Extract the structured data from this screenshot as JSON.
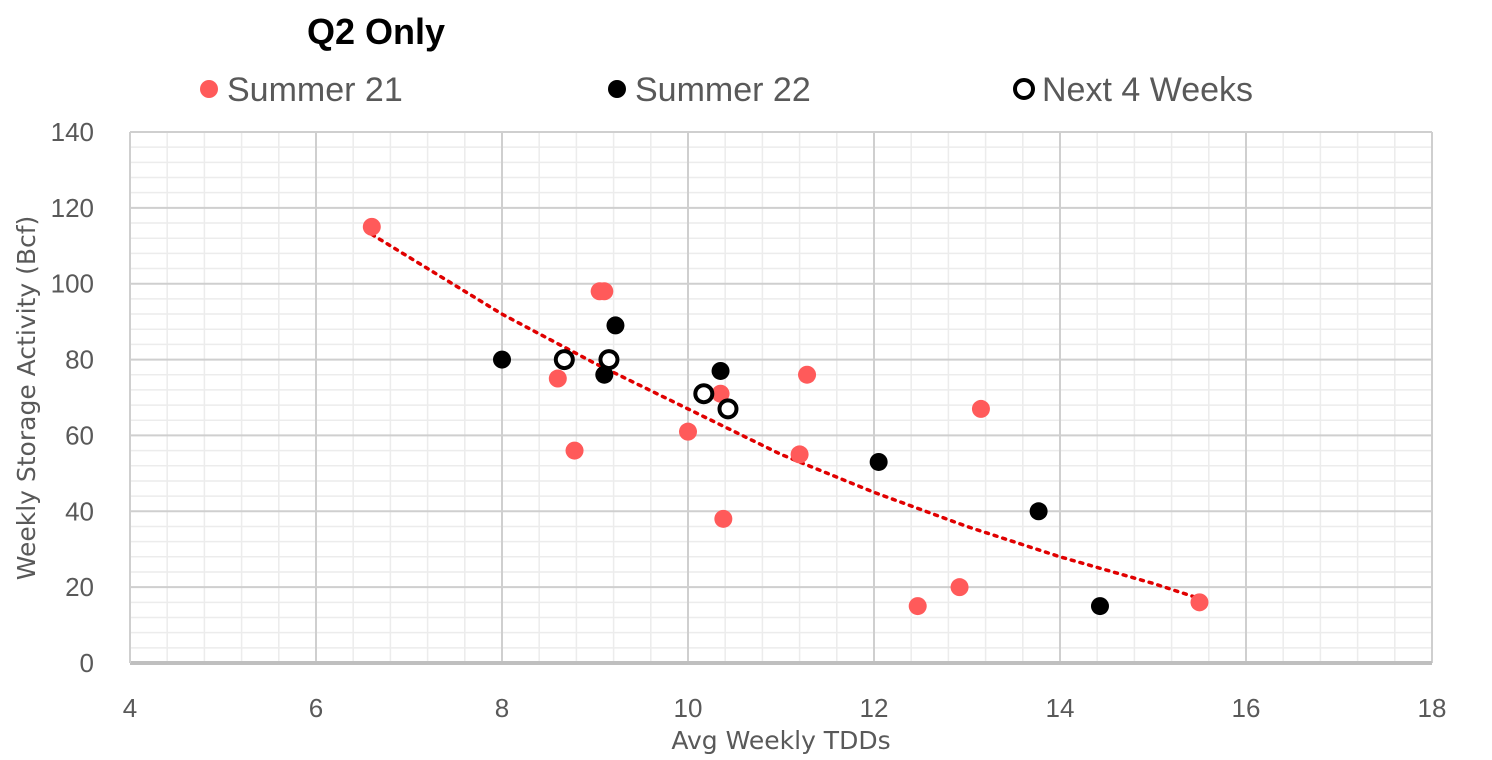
{
  "chart_data": {
    "type": "scatter",
    "title": "Q2 Only",
    "xlabel": "Avg Weekly TDDs",
    "ylabel": "Weekly Storage Activity (Bcf)",
    "xlim": [
      4,
      18
    ],
    "ylim": [
      0,
      140
    ],
    "x_ticks": [
      "4",
      "6",
      "8",
      "10",
      "12",
      "14",
      "16",
      "18"
    ],
    "y_ticks": [
      "0",
      "20",
      "40",
      "60",
      "80",
      "100",
      "120",
      "140"
    ],
    "grid": true,
    "legend_position": "top",
    "series": [
      {
        "name": "Summer 21",
        "marker": "filled-circle",
        "color": "#ff5a5a",
        "points": [
          {
            "x": 6.6,
            "y": 115
          },
          {
            "x": 9.05,
            "y": 98
          },
          {
            "x": 9.1,
            "y": 98
          },
          {
            "x": 8.6,
            "y": 75
          },
          {
            "x": 8.78,
            "y": 56
          },
          {
            "x": 10.0,
            "y": 61
          },
          {
            "x": 10.35,
            "y": 71
          },
          {
            "x": 10.38,
            "y": 38
          },
          {
            "x": 11.28,
            "y": 76
          },
          {
            "x": 11.2,
            "y": 55
          },
          {
            "x": 13.15,
            "y": 67
          },
          {
            "x": 12.92,
            "y": 20
          },
          {
            "x": 12.47,
            "y": 15
          },
          {
            "x": 15.5,
            "y": 16
          }
        ]
      },
      {
        "name": "Summer 22",
        "marker": "filled-circle",
        "color": "#000000",
        "points": [
          {
            "x": 8.0,
            "y": 80
          },
          {
            "x": 9.22,
            "y": 89
          },
          {
            "x": 9.1,
            "y": 76
          },
          {
            "x": 10.35,
            "y": 77
          },
          {
            "x": 12.05,
            "y": 53
          },
          {
            "x": 13.77,
            "y": 40
          },
          {
            "x": 14.43,
            "y": 15
          }
        ]
      },
      {
        "name": "Next 4 Weeks",
        "marker": "open-circle",
        "color": "#000000",
        "points": [
          {
            "x": 8.67,
            "y": 80
          },
          {
            "x": 9.15,
            "y": 80
          },
          {
            "x": 10.17,
            "y": 71
          },
          {
            "x": 10.43,
            "y": 67
          }
        ]
      }
    ],
    "trendline": {
      "style": "dotted",
      "color": "#e00000",
      "x_range": [
        6.6,
        15.5
      ],
      "points": [
        {
          "x": 6.6,
          "y": 113
        },
        {
          "x": 8.0,
          "y": 92
        },
        {
          "x": 9.0,
          "y": 79
        },
        {
          "x": 10.0,
          "y": 67
        },
        {
          "x": 11.0,
          "y": 55
        },
        {
          "x": 12.0,
          "y": 45
        },
        {
          "x": 13.0,
          "y": 36
        },
        {
          "x": 14.0,
          "y": 28
        },
        {
          "x": 15.0,
          "y": 21
        },
        {
          "x": 15.5,
          "y": 17
        }
      ]
    }
  }
}
